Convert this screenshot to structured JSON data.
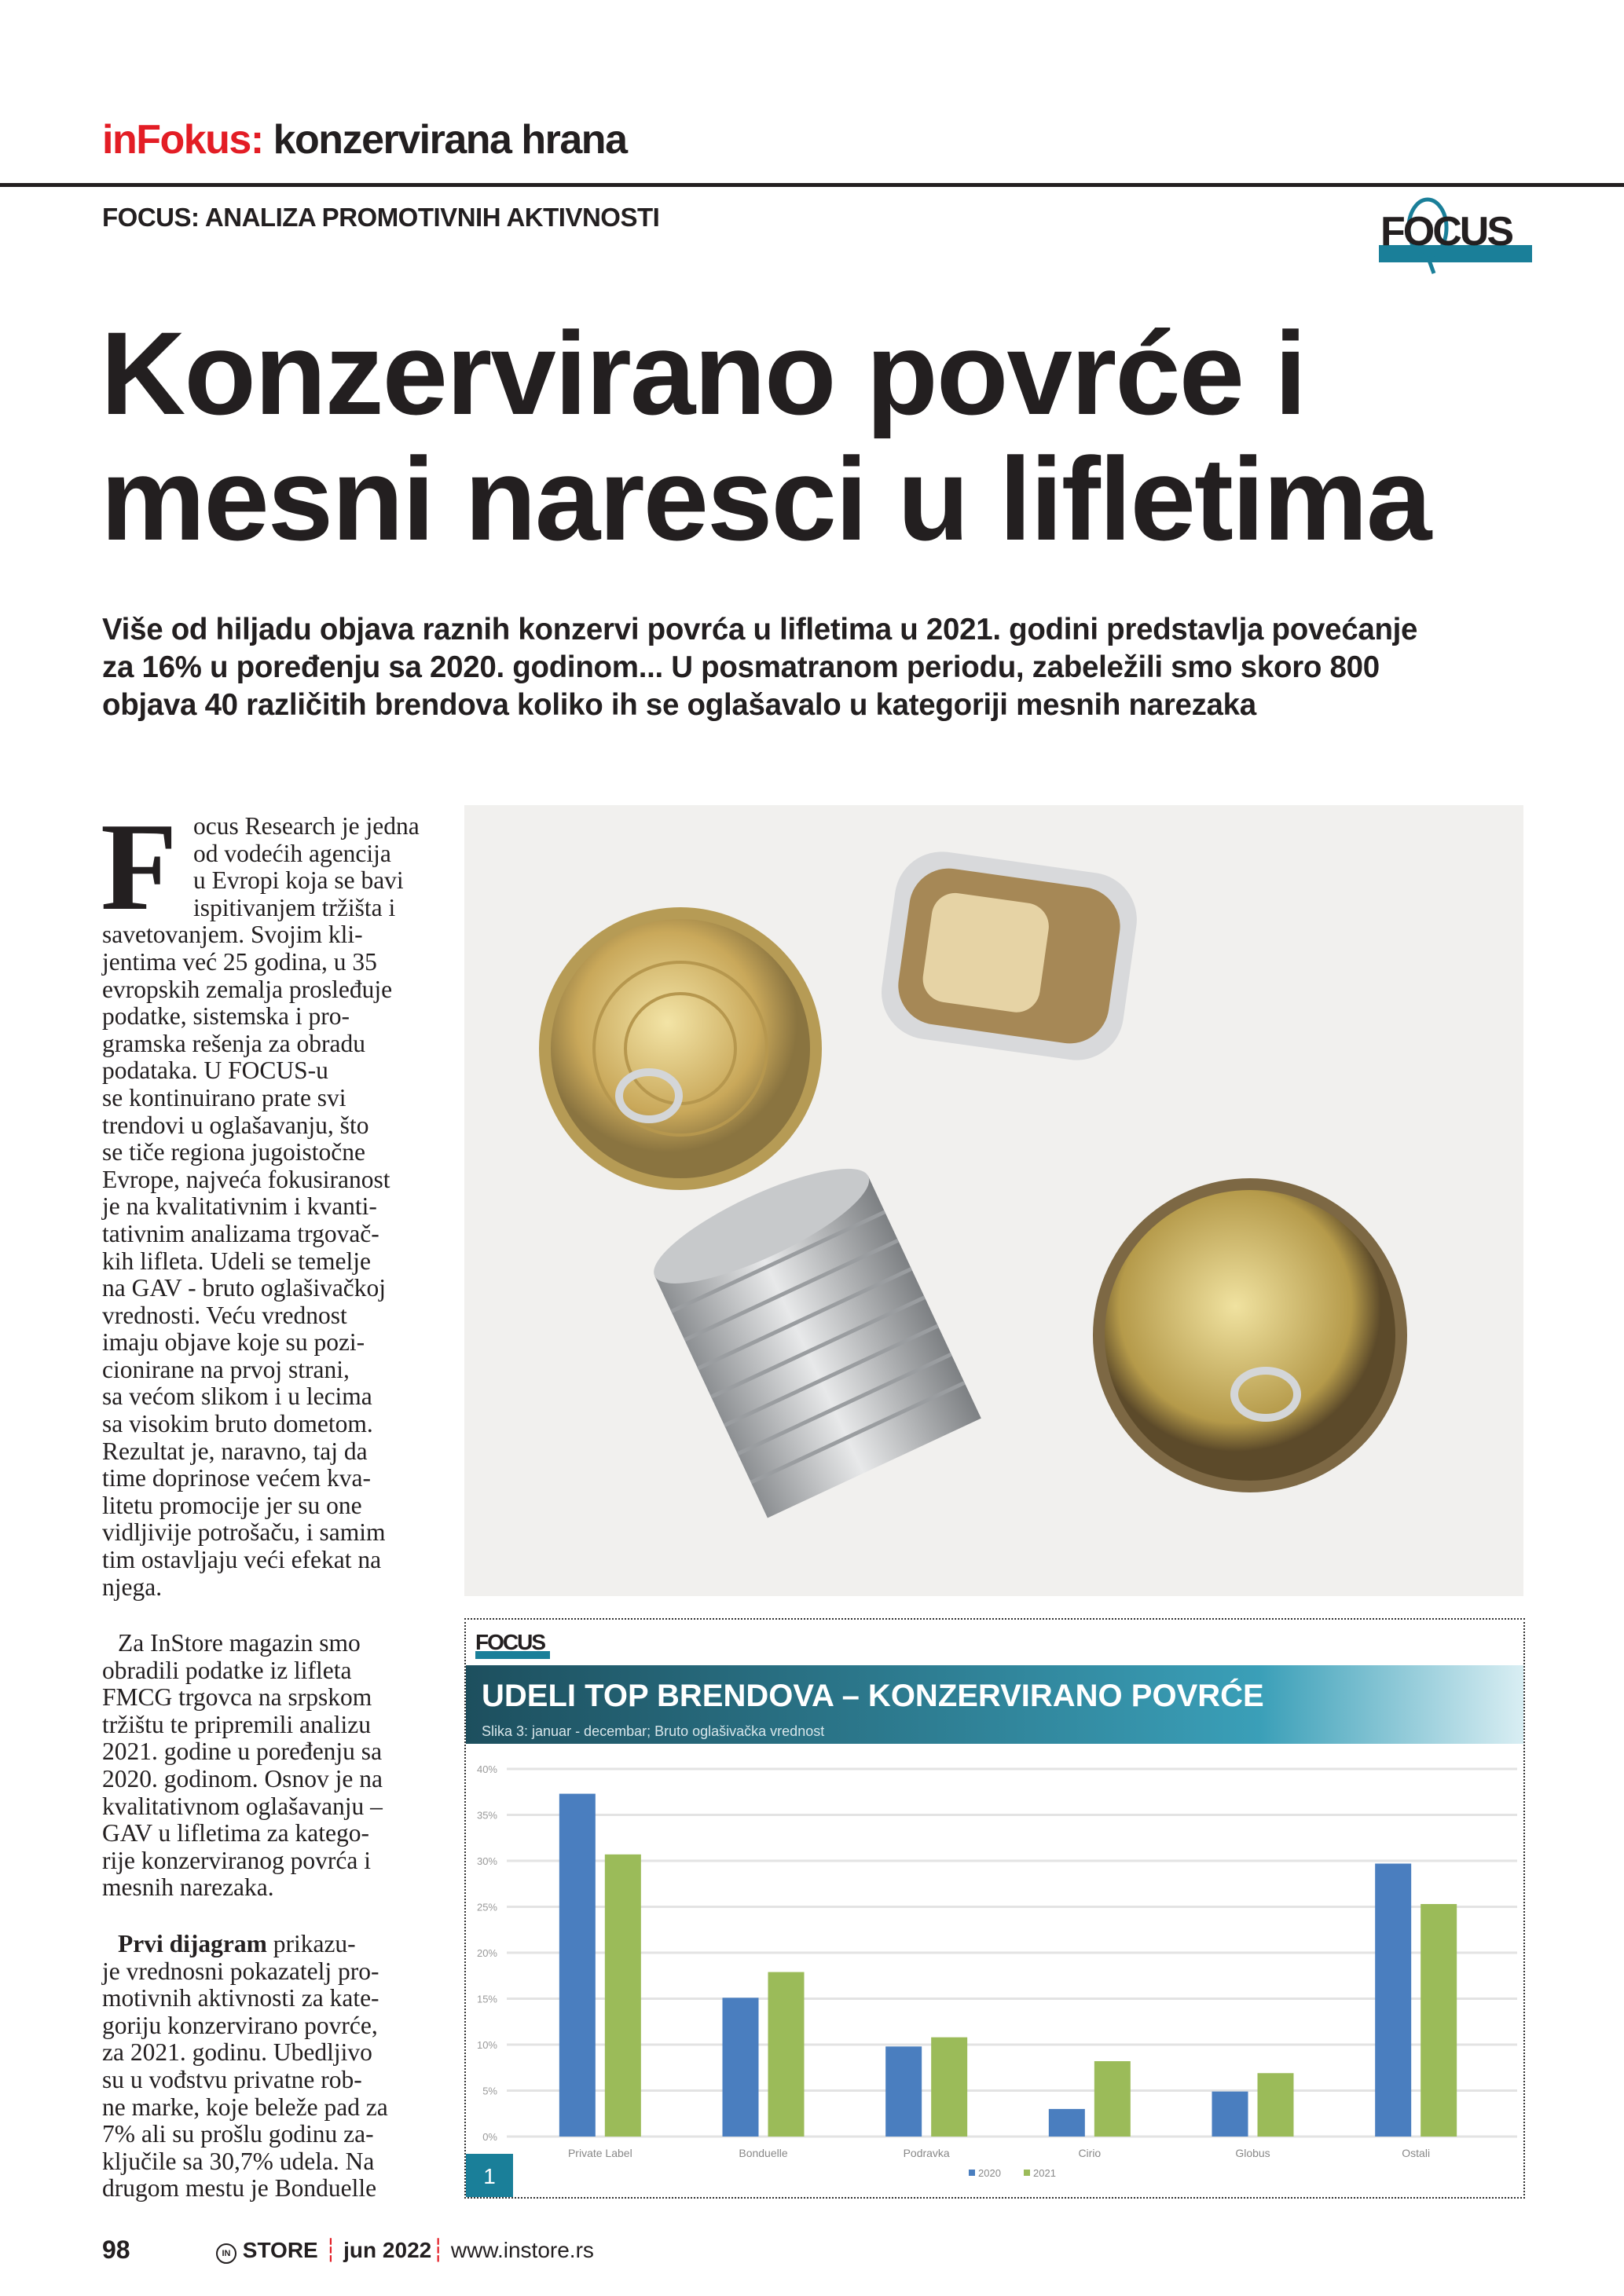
{
  "header": {
    "kicker_brand": "inFokus:",
    "kicker_topic": "konzervirana hrana",
    "section": "FOCUS: ANALIZA PROMOTIVNIH AKTIVNOSTI",
    "logo_text": "FOCUS"
  },
  "title": [
    "Konzervirano povrće i",
    "mesni naresci u lifletima"
  ],
  "deck": [
    "Više od hiljadu objava raznih konzervi povrća u lifletima u 2021. godini predstavlja povećanje",
    "za 16% u poređenju sa 2020. godinom... U posmatranom periodu, zabeležili smo skoro 800",
    "objava 40 različitih brendova koliko ih se oglašavalo u kategoriji mesnih narezaka"
  ],
  "body": {
    "dropcap": "F",
    "p1": [
      "ocus Research je jedna",
      "od vodećih agencija",
      "u Evropi koja se bavi",
      "ispitivanjem tržišta i",
      "savetovanjem. Svojim kli-",
      "jentima već 25 godina, u 35",
      "evropskih zemalja prosleđuje",
      "podatke, sistemska i pro-",
      "gramska rešenja za obradu",
      "podataka. U FOCUS-u",
      "se kontinuirano prate svi",
      "trendovi u oglašavanju, što",
      "se tiče regiona jugoistočne",
      "Evrope, najveća fokusiranost",
      "je na kvalitativnim i kvanti-",
      "tativnim analizama trgovač-",
      "kih lifleta. Udeli se temelje",
      "na GAV - bruto oglašivačkoj",
      "vrednosti. Veću vrednost",
      "imaju objave koje su pozi-",
      "cionirane na prvoj strani,",
      "sa većom slikom i u lecima",
      "sa visokim bruto dometom.",
      "Rezultat je, naravno, taj da",
      "time doprinose većem kva-",
      "litetu promocije jer su one",
      "vidljivije potrošaču, i samim",
      "tim ostavljaju veći efekat na",
      "njega."
    ],
    "p2": [
      "Za InStore magazin smo",
      "obradili podatke iz lifleta",
      "FMCG trgovca na srpskom",
      "tržištu te pripremili analizu",
      "2021. godine u poređenju sa",
      "2020. godinom. Osnov je na",
      "kvalitativnom oglašavanju –",
      "GAV u lifletima za katego-",
      "rije konzerviranog povrća i",
      "mesnih narezaka."
    ],
    "p3_bold": "Prvi dijagram",
    "p3_first_rest": " prikazu-",
    "p3": [
      "je vrednosni pokazatelj pro-",
      "motivnih aktivnosti za kate-",
      "goriju konzervirano povrće,",
      "za 2021. godinu. Ubedljivo",
      "su u vođstvu privatne rob-",
      "ne marke, koje beleže pad za",
      "7% ali su prošlu godinu za-",
      "ključile sa 30,7% udela. Na",
      "drugom mestu je Bonduelle"
    ]
  },
  "figure": {
    "logo_text": "FOCUS",
    "number": "1"
  },
  "chart_data": {
    "type": "bar",
    "title": "UDELI TOP BRENDOVA – KONZERVIRANO POVRĆE",
    "subtitle": "Slika 3: januar - decembar; Bruto oglašivačka vrednost",
    "categories": [
      "Private Label",
      "Bonduelle",
      "Podravka",
      "Cirio",
      "Globus",
      "Ostali"
    ],
    "series": [
      {
        "name": "2020",
        "color": "#4a7ebf",
        "values": [
          37.3,
          15.1,
          9.8,
          3.0,
          4.9,
          29.7
        ]
      },
      {
        "name": "2021",
        "color": "#9bbb59",
        "values": [
          30.7,
          17.9,
          10.8,
          8.2,
          6.9,
          25.3
        ]
      }
    ],
    "yticks": [
      "0%",
      "5%",
      "10%",
      "15%",
      "20%",
      "25%",
      "30%",
      "35%",
      "40%"
    ],
    "ylim": [
      0,
      40
    ],
    "grid": true,
    "legend": "bottom"
  },
  "footer": {
    "page": "98",
    "brand": "STORE",
    "brand_mark": "IN",
    "issue": "jun 2022",
    "url": "www.instore.rs"
  },
  "colors": {
    "accent_red": "#e31d25",
    "focus_teal": "#1a7f99"
  }
}
